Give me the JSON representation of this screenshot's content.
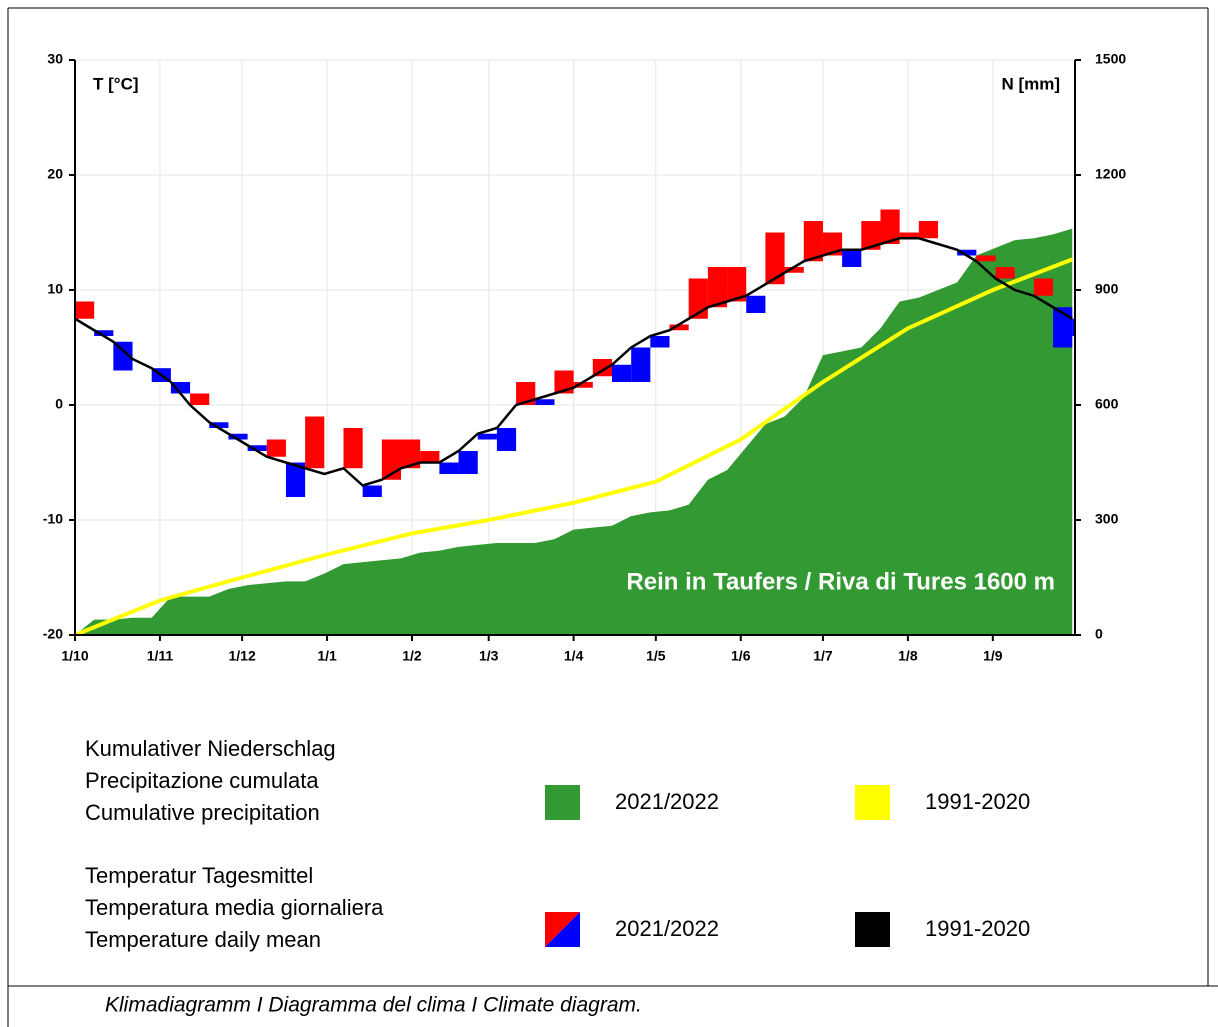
{
  "chart_data": {
    "type": "climate",
    "title": "Rein in Taufers / Riva di Tures 1600 m",
    "ylabel": "T [°C]",
    "y2label": "N [mm]",
    "xlim": [
      0,
      365
    ],
    "xticks": [
      {
        "value": 0,
        "label": "1/10"
      },
      {
        "value": 31,
        "label": "1/11"
      },
      {
        "value": 61,
        "label": "1/12"
      },
      {
        "value": 92,
        "label": "1/1"
      },
      {
        "value": 123,
        "label": "1/2"
      },
      {
        "value": 151,
        "label": "1/3"
      },
      {
        "value": 182,
        "label": "1/4"
      },
      {
        "value": 212,
        "label": "1/5"
      },
      {
        "value": 243,
        "label": "1/6"
      },
      {
        "value": 273,
        "label": "1/7"
      },
      {
        "value": 304,
        "label": "1/8"
      },
      {
        "value": 335,
        "label": "1/9"
      }
    ],
    "ylim": [
      -20,
      30
    ],
    "yticks": [
      -20,
      -10,
      0,
      10,
      20,
      30
    ],
    "y2lim": [
      0,
      1500
    ],
    "y2ticks": [
      0,
      300,
      600,
      900,
      1200,
      1500
    ],
    "grid": true,
    "legend": [
      {
        "heading": [
          "Kumulativer Niederschlag",
          "Precipitazione cumulata",
          "Cumulative precipitation"
        ]
      },
      {
        "heading": [
          "Temperatur Tagesmittel",
          "Temperatura media giornaliera",
          "Temperature daily mean"
        ]
      }
    ],
    "series": [
      {
        "name": "2021/2022",
        "type": "area",
        "axis": "y2",
        "color": "#339933",
        "x": [
          0,
          7,
          14,
          21,
          28,
          35,
          42,
          49,
          56,
          63,
          70,
          77,
          84,
          91,
          98,
          105,
          112,
          119,
          126,
          133,
          140,
          147,
          154,
          161,
          168,
          175,
          182,
          189,
          196,
          203,
          210,
          217,
          224,
          231,
          238,
          245,
          252,
          259,
          266,
          273,
          280,
          287,
          294,
          301,
          308,
          315,
          322,
          329,
          336,
          343,
          350,
          357,
          364
        ],
        "values": [
          0,
          40,
          40,
          45,
          45,
          100,
          100,
          100,
          120,
          130,
          135,
          140,
          140,
          160,
          185,
          190,
          195,
          200,
          215,
          220,
          230,
          235,
          240,
          240,
          240,
          250,
          275,
          280,
          285,
          310,
          320,
          325,
          340,
          405,
          430,
          490,
          550,
          570,
          620,
          730,
          740,
          750,
          800,
          870,
          880,
          900,
          920,
          990,
          1010,
          1030,
          1035,
          1045,
          1060
        ]
      },
      {
        "name": "1991-2020",
        "type": "line",
        "axis": "y2",
        "color": "#ffff00",
        "x": [
          0,
          31,
          61,
          92,
          123,
          151,
          182,
          212,
          243,
          273,
          304,
          335,
          364
        ],
        "values": [
          0,
          90,
          150,
          210,
          265,
          300,
          345,
          400,
          510,
          660,
          800,
          900,
          980
        ]
      },
      {
        "name": "2021/2022",
        "type": "anomaly",
        "color": "#ff0000",
        "color_below": "#0000ff",
        "x": [
          0,
          7,
          14,
          21,
          28,
          35,
          42,
          49,
          56,
          63,
          70,
          77,
          84,
          91,
          98,
          105,
          112,
          119,
          126,
          133,
          140,
          147,
          154,
          161,
          168,
          175,
          182,
          189,
          196,
          203,
          210,
          217,
          224,
          231,
          238,
          245,
          252,
          259,
          266,
          273,
          280,
          287,
          294,
          301,
          308,
          315,
          322,
          329,
          336,
          343,
          350,
          357,
          364
        ],
        "values": [
          9,
          6,
          3,
          4,
          2,
          1,
          1,
          -2,
          -3,
          -4,
          -3,
          -8,
          -1,
          -6,
          -2,
          -8,
          -3,
          -3,
          -4,
          -6,
          -6,
          -3,
          -4,
          2,
          0,
          3,
          2,
          4,
          2,
          2,
          5,
          7,
          11,
          12,
          12,
          8,
          15,
          12,
          16,
          15,
          12,
          16,
          17,
          15,
          16,
          14,
          13,
          13,
          12,
          10,
          11,
          5,
          6
        ]
      },
      {
        "name": "1991-2020",
        "type": "line",
        "color": "#000000",
        "x": [
          0,
          7,
          14,
          21,
          28,
          35,
          42,
          49,
          56,
          63,
          70,
          77,
          84,
          91,
          98,
          105,
          112,
          119,
          126,
          133,
          140,
          147,
          154,
          161,
          168,
          175,
          182,
          189,
          196,
          203,
          210,
          217,
          224,
          231,
          238,
          245,
          252,
          259,
          266,
          273,
          280,
          287,
          294,
          301,
          308,
          315,
          322,
          329,
          336,
          343,
          350,
          357,
          364
        ],
        "values": [
          7.5,
          6.5,
          5.5,
          4,
          3.2,
          2,
          0,
          -1.5,
          -2.5,
          -3.5,
          -4.5,
          -5,
          -5.5,
          -6,
          -5.5,
          -7,
          -6.5,
          -5.5,
          -5,
          -5,
          -4,
          -2.5,
          -2,
          0,
          0.5,
          1,
          1.5,
          2.5,
          3.5,
          5,
          6,
          6.5,
          7.5,
          8.5,
          9,
          9.5,
          10.5,
          11.5,
          12.5,
          13,
          13.5,
          13.5,
          14,
          14.5,
          14.5,
          14,
          13.5,
          12.5,
          11,
          10,
          9.5,
          8.5,
          7.5
        ]
      }
    ]
  },
  "caption": "Klimadiagramm I Diagramma del clima I Climate diagram."
}
